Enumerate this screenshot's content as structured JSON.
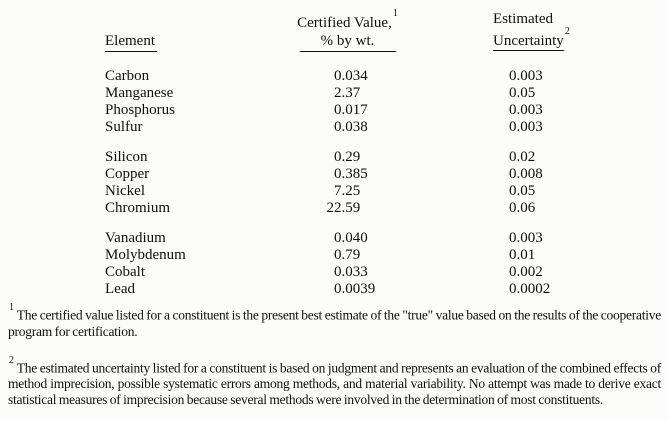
{
  "table": {
    "headers": {
      "element": "Element",
      "certified_line1": "Certified Value,",
      "certified_sup": "1",
      "certified_line2": "% by wt.",
      "estimated_line1": "Estimated",
      "estimated_line2": "Uncertainty",
      "estimated_sup": "2"
    },
    "groups": [
      {
        "rows": [
          {
            "element": "Carbon",
            "certified_value": "0.034",
            "uncertainty": "0.003"
          },
          {
            "element": "Manganese",
            "certified_value": "2.37",
            "uncertainty": "0.05"
          },
          {
            "element": "Phosphorus",
            "certified_value": "0.017",
            "uncertainty": "0.003"
          },
          {
            "element": "Sulfur",
            "certified_value": "0.038",
            "uncertainty": "0.003"
          }
        ]
      },
      {
        "rows": [
          {
            "element": "Silicon",
            "certified_value": "0.29",
            "uncertainty": "0.02"
          },
          {
            "element": "Copper",
            "certified_value": "0.385",
            "uncertainty": "0.008"
          },
          {
            "element": "Nickel",
            "certified_value": "7.25",
            "uncertainty": "0.05"
          },
          {
            "element": "Chromium",
            "certified_value": "22.59",
            "uncertainty": "0.06"
          }
        ]
      },
      {
        "rows": [
          {
            "element": "Vanadium",
            "certified_value": "0.040",
            "uncertainty": "0.003"
          },
          {
            "element": "Molybdenum",
            "certified_value": "0.79",
            "uncertainty": "0.01"
          },
          {
            "element": "Cobalt",
            "certified_value": "0.033",
            "uncertainty": "0.002"
          },
          {
            "element": "Lead",
            "certified_value": "0.0039",
            "uncertainty": "0.0002"
          }
        ]
      }
    ]
  },
  "footnotes": [
    {
      "sup": "1",
      "text": "The certified value listed for a constituent is the present best estimate of the \"true\" value based on the results of the cooperative program for certification."
    },
    {
      "sup": "2",
      "text": "The estimated uncertainty listed for a constituent is based on judgment and represents an evaluation of the combined effects of method imprecision, possible systematic errors among methods, and material variability. No attempt was made to derive exact statistical measures of imprecision because several methods were involved in the determination of most constituents."
    }
  ]
}
